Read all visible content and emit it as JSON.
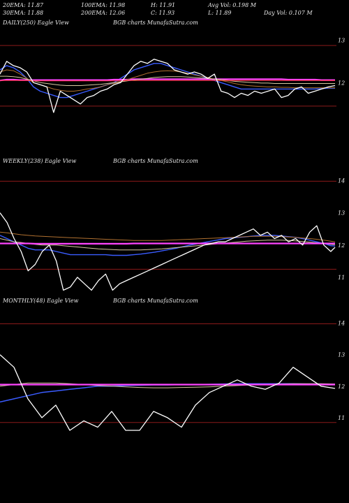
{
  "header": {
    "ema20": "20EMA: 11.87",
    "ema100": "100EMA: 11.98",
    "high": "H: 11.91",
    "avgvol": "Avg Vol: 0.198  M",
    "ema30": "30EMA: 11.88",
    "ema200": "200EMA: 12.06",
    "close": "C: 11.93",
    "low": "L: 11.89",
    "dayvol": "Day Vol: 0.107 M"
  },
  "colors": {
    "background": "#000000",
    "price": "#ffffff",
    "ema_blue": "#3a5cff",
    "ema_magenta": "#ff44ff",
    "ema_brown": "#b07030",
    "ema_tan": "#d8c8a0",
    "ema_gray": "#9a9a9a",
    "resistance_line": "#8b1a1a",
    "hline_red": "#ff3030"
  },
  "chart_data": [
    {
      "type": "line",
      "title": "DAILY(250) Eagle  View",
      "subtitle": "BGB charts MunafaSutra.com",
      "yticks": [
        13,
        12
      ],
      "ylim": [
        10.3,
        13.25
      ],
      "x": [
        0,
        5,
        10,
        15,
        20,
        25,
        30,
        35,
        40,
        45,
        50,
        55,
        60,
        65,
        70,
        75,
        80,
        85,
        90,
        95,
        100,
        105,
        110,
        115,
        120,
        125,
        130,
        135,
        140,
        145,
        150,
        155,
        160,
        165,
        170,
        175,
        180,
        185,
        190,
        195,
        200,
        205,
        210,
        215,
        220,
        225,
        230,
        235,
        240,
        245,
        250
      ],
      "series": [
        {
          "values": [
            12.2,
            12.5,
            12.4,
            12.35,
            12.25,
            12.0,
            11.95,
            11.9,
            11.3,
            11.8,
            11.7,
            11.6,
            11.5,
            11.65,
            11.7,
            11.8,
            11.85,
            11.95,
            12.0,
            12.2,
            12.4,
            12.5,
            12.45,
            12.55,
            12.5,
            12.45,
            12.3,
            12.25,
            12.2,
            12.25,
            12.2,
            12.1,
            12.2,
            11.8,
            11.75,
            11.65,
            11.75,
            11.7,
            11.8,
            11.75,
            11.8,
            11.85,
            11.65,
            11.7,
            11.85,
            11.9,
            11.75,
            11.8,
            11.85,
            11.9,
            11.93
          ]
        },
        {
          "values": [
            12.3,
            12.4,
            12.35,
            12.25,
            12.1,
            11.9,
            11.8,
            11.75,
            11.7,
            11.65,
            11.65,
            11.7,
            11.75,
            11.8,
            11.85,
            11.9,
            11.95,
            12.0,
            12.1,
            12.2,
            12.3,
            12.35,
            12.4,
            12.45,
            12.45,
            12.4,
            12.35,
            12.3,
            12.25,
            12.2,
            12.15,
            12.1,
            12.05,
            12.0,
            11.95,
            11.9,
            11.85,
            11.85,
            11.85,
            11.85,
            11.85,
            11.85,
            11.85,
            11.85,
            11.85,
            11.85,
            11.85,
            11.85,
            11.86,
            11.87,
            11.87
          ]
        },
        {
          "values": [
            12.05,
            12.07,
            12.07,
            12.06,
            12.06,
            12.06,
            12.06,
            12.06,
            12.06,
            12.06,
            12.06,
            12.06,
            12.06,
            12.06,
            12.06,
            12.06,
            12.06,
            12.07,
            12.07,
            12.07,
            12.08,
            12.08,
            12.08,
            12.08,
            12.08,
            12.08,
            12.08,
            12.08,
            12.08,
            12.08,
            12.08,
            12.08,
            12.08,
            12.08,
            12.08,
            12.08,
            12.08,
            12.08,
            12.08,
            12.08,
            12.08,
            12.08,
            12.08,
            12.07,
            12.07,
            12.07,
            12.07,
            12.07,
            12.06,
            12.06,
            12.06
          ]
        },
        {
          "values": [
            12.25,
            12.3,
            12.28,
            12.2,
            12.1,
            12.0,
            11.95,
            11.9,
            11.85,
            11.82,
            11.8,
            11.8,
            11.82,
            11.85,
            11.87,
            11.9,
            11.95,
            11.98,
            12.02,
            12.07,
            12.12,
            12.17,
            12.22,
            12.25,
            12.27,
            12.28,
            12.27,
            12.25,
            12.22,
            12.18,
            12.15,
            12.12,
            12.08,
            12.05,
            12.02,
            11.98,
            11.95,
            11.93,
            11.92,
            11.91,
            11.9,
            11.9,
            11.89,
            11.89,
            11.88,
            11.88,
            11.88,
            11.88,
            11.88,
            11.88,
            11.88
          ]
        },
        {
          "values": [
            12.15,
            12.15,
            12.14,
            12.12,
            12.08,
            12.04,
            12.0,
            11.98,
            11.96,
            11.94,
            11.93,
            11.93,
            11.93,
            11.94,
            11.95,
            11.96,
            11.98,
            12.0,
            12.02,
            12.04,
            12.06,
            12.08,
            12.1,
            12.12,
            12.13,
            12.14,
            12.14,
            12.14,
            12.13,
            12.12,
            12.11,
            12.1,
            12.08,
            12.07,
            12.05,
            12.03,
            12.02,
            12.01,
            12.0,
            11.99,
            11.99,
            11.98,
            11.98,
            11.98,
            11.98,
            11.98,
            11.98,
            11.98,
            11.98,
            11.98,
            11.98
          ]
        },
        {
          "values": [
            12.05,
            12.05,
            12.05,
            12.05,
            12.05,
            12.04,
            12.04,
            12.04,
            12.04,
            12.04,
            12.04,
            12.04,
            12.04,
            12.04,
            12.04,
            12.04,
            12.04,
            12.04,
            12.04,
            12.05,
            12.05,
            12.05,
            12.05,
            12.05,
            12.05,
            12.05,
            12.05,
            12.05,
            12.05,
            12.05,
            12.05,
            12.05,
            12.05,
            12.05,
            12.05,
            12.05,
            12.05,
            12.05,
            12.05,
            12.05,
            12.05,
            12.05,
            12.05,
            12.05,
            12.05,
            12.05,
            12.05,
            12.05,
            12.05,
            12.05,
            12.05
          ]
        }
      ]
    },
    {
      "type": "line",
      "title": "WEEKLY(238) Eagle  View",
      "subtitle": "BGB charts MunafaSutra.com",
      "yticks": [
        14,
        13,
        12,
        11
      ],
      "ylim": [
        10.5,
        14.4
      ],
      "x": [
        0,
        5,
        10,
        15,
        20,
        25,
        30,
        35,
        40,
        45,
        50,
        55,
        60,
        65,
        70,
        75,
        80,
        85,
        90,
        95,
        100,
        105,
        110,
        115,
        120,
        125,
        130,
        135,
        140,
        145,
        150,
        155,
        160,
        165,
        170,
        175,
        180,
        185,
        190,
        195,
        200,
        205,
        210,
        215,
        220,
        225,
        230,
        235,
        238
      ],
      "series": [
        {
          "values": [
            13.0,
            12.7,
            12.2,
            11.8,
            11.2,
            11.4,
            11.8,
            12.0,
            11.5,
            10.6,
            10.7,
            11.0,
            10.8,
            10.6,
            10.9,
            11.1,
            10.6,
            10.8,
            10.9,
            11.0,
            11.1,
            11.2,
            11.3,
            11.4,
            11.5,
            11.6,
            11.7,
            11.8,
            11.9,
            12.0,
            12.05,
            12.1,
            12.1,
            12.2,
            12.3,
            12.4,
            12.5,
            12.3,
            12.4,
            12.2,
            12.3,
            12.1,
            12.2,
            12.0,
            12.4,
            12.6,
            12.0,
            11.8,
            11.93
          ]
        },
        {
          "values": [
            12.3,
            12.2,
            12.1,
            12.0,
            11.9,
            11.85,
            11.85,
            11.85,
            11.8,
            11.75,
            11.7,
            11.7,
            11.7,
            11.7,
            11.7,
            11.7,
            11.68,
            11.68,
            11.68,
            11.7,
            11.72,
            11.75,
            11.78,
            11.82,
            11.86,
            11.9,
            11.95,
            12.0,
            12.04,
            12.08,
            12.12,
            12.16,
            12.2,
            12.22,
            12.24,
            12.26,
            12.28,
            12.3,
            12.3,
            12.3,
            12.28,
            12.26,
            12.24,
            12.2,
            12.15,
            12.1,
            12.05,
            11.98,
            11.97
          ]
        },
        {
          "values": [
            12.2,
            12.15,
            12.1,
            12.08,
            12.05,
            12.02,
            12.0,
            12.0,
            12.0,
            11.98,
            11.96,
            11.94,
            11.92,
            11.9,
            11.88,
            11.87,
            11.86,
            11.85,
            11.85,
            11.85,
            11.85,
            11.86,
            11.87,
            11.88,
            11.9,
            11.92,
            11.94,
            11.96,
            11.98,
            12.0,
            12.02,
            12.04,
            12.06,
            12.08,
            12.1,
            12.12,
            12.13,
            12.14,
            12.15,
            12.15,
            12.15,
            12.14,
            12.13,
            12.11,
            12.09,
            12.07,
            12.05,
            12.02,
            12.01
          ]
        },
        {
          "values": [
            12.05,
            12.05,
            12.05,
            12.05,
            12.05,
            12.04,
            12.04,
            12.04,
            12.04,
            12.04,
            12.04,
            12.04,
            12.04,
            12.04,
            12.04,
            12.04,
            12.04,
            12.04,
            12.04,
            12.05,
            12.05,
            12.05,
            12.05,
            12.05,
            12.05,
            12.05,
            12.05,
            12.05,
            12.05,
            12.05,
            12.05,
            12.05,
            12.05,
            12.05,
            12.05,
            12.05,
            12.05,
            12.05,
            12.05,
            12.05,
            12.05,
            12.05,
            12.05,
            12.05,
            12.05,
            12.05,
            12.05,
            12.05,
            12.05
          ]
        },
        {
          "values": [
            12.4,
            12.38,
            12.35,
            12.32,
            12.3,
            12.28,
            12.27,
            12.26,
            12.25,
            12.24,
            12.23,
            12.22,
            12.21,
            12.2,
            12.19,
            12.18,
            12.17,
            12.16,
            12.15,
            12.14,
            12.14,
            12.14,
            12.14,
            12.14,
            12.15,
            12.16,
            12.17,
            12.18,
            12.19,
            12.2,
            12.21,
            12.22,
            12.23,
            12.24,
            12.25,
            12.26,
            12.27,
            12.27,
            12.27,
            12.27,
            12.26,
            12.25,
            12.24,
            12.22,
            12.2,
            12.18,
            12.15,
            12.12,
            12.1
          ]
        }
      ]
    },
    {
      "type": "line",
      "title": "MONTHLY(48) Eagle  View",
      "subtitle": "BGB charts MunafaSutra.com",
      "yticks": [
        14,
        13,
        12,
        11
      ],
      "ylim": [
        10.4,
        14.5
      ],
      "x": [
        0,
        2,
        4,
        6,
        8,
        10,
        12,
        14,
        16,
        18,
        20,
        22,
        24,
        26,
        28,
        30,
        32,
        34,
        36,
        38,
        40,
        42,
        44,
        46,
        48
      ],
      "series": [
        {
          "values": [
            13.0,
            12.6,
            11.6,
            11.0,
            11.4,
            10.6,
            10.9,
            10.7,
            11.2,
            10.6,
            10.6,
            11.2,
            11.0,
            10.7,
            11.4,
            11.8,
            12.0,
            12.2,
            12.0,
            11.9,
            12.1,
            12.6,
            12.3,
            12.0,
            11.93
          ]
        },
        {
          "values": [
            11.5,
            11.6,
            11.7,
            11.8,
            11.85,
            11.9,
            11.95,
            12.0,
            12.0,
            12.02,
            12.03,
            12.04,
            12.04,
            12.05,
            12.05,
            12.06,
            12.07,
            12.08,
            12.08,
            12.08,
            12.08,
            12.08,
            12.07,
            12.07,
            12.06
          ]
        },
        {
          "values": [
            12.0,
            12.05,
            12.1,
            12.1,
            12.1,
            12.08,
            12.05,
            12.02,
            12.0,
            11.98,
            11.96,
            11.95,
            11.95,
            11.96,
            11.97,
            11.98,
            12.0,
            12.02,
            12.04,
            12.06,
            12.07,
            12.08,
            12.08,
            12.08,
            12.07
          ]
        },
        {
          "values": [
            12.05,
            12.05,
            12.05,
            12.05,
            12.05,
            12.05,
            12.05,
            12.05,
            12.05,
            12.05,
            12.05,
            12.05,
            12.05,
            12.05,
            12.05,
            12.05,
            12.05,
            12.05,
            12.05,
            12.05,
            12.05,
            12.05,
            12.05,
            12.05,
            12.05
          ]
        }
      ]
    }
  ]
}
